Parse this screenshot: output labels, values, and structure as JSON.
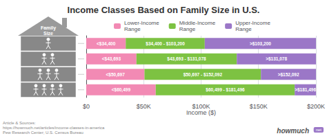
{
  "chart_data": {
    "type": "bar",
    "orientation": "horizontal",
    "stacked": true,
    "title": "Income Classes Based on Family Size in U.S.",
    "xlabel": "Income ($)",
    "categories": [
      null,
      null,
      null,
      null
    ],
    "family_sizes": [
      1,
      2,
      3,
      4
    ],
    "icon_label": "Family\nSize",
    "series": [
      {
        "name": "Lower-Income\nRange",
        "color": "#f28ab4",
        "values": [
          34400,
          43693,
          50697,
          60499
        ],
        "annotations": [
          "<$34,400",
          "<$43,693",
          "<$50,697",
          "<$60,499"
        ]
      },
      {
        "name": "Middle-Income\nRange",
        "color": "#7dc242",
        "values": [
          68800,
          87385,
          101395,
          120997
        ],
        "annotations": [
          "$34,400 - $103,200",
          "$43,693 - $131,078",
          "$50,697 - $152,092",
          "$60,499 - $181,496"
        ]
      },
      {
        "name": "Upper-Income\nRange",
        "color": "#9b77c7",
        "values": [
          96800,
          68922,
          47908,
          18504
        ],
        "annotations": [
          ">$103,200",
          ">$131,078",
          ">$152,092",
          ">$181,496"
        ]
      }
    ],
    "xlim": [
      0,
      200000
    ],
    "xticks": [
      {
        "value": 0,
        "label": "$0"
      },
      {
        "value": 50000,
        "label": "$50K"
      },
      {
        "value": 100000,
        "label": "$100K"
      },
      {
        "value": 150000,
        "label": "$150K"
      },
      {
        "value": 200000,
        "label": "$200K"
      }
    ],
    "grid": true,
    "legend": "top",
    "tick_labels": "x",
    "source": "Article & Sources:\nhttps://howmuch.net/articles/income-classes-in-america\nPew Research Center; U.S. Census Bureau",
    "branding": [
      "howmuch",
      "net"
    ]
  }
}
